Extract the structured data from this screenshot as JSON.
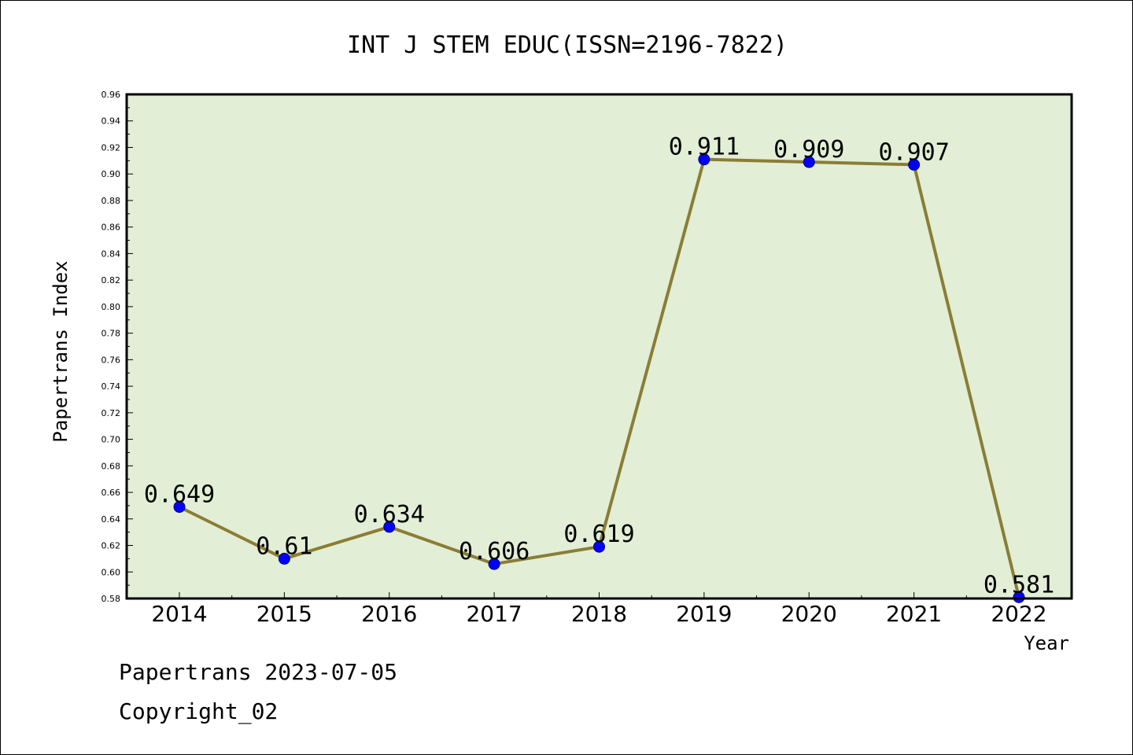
{
  "chart_data": {
    "type": "line",
    "title": "INT J STEM EDUC(ISSN=2196-7822)",
    "xlabel": "Year",
    "ylabel": "Papertrans Index",
    "ylim": [
      0.58,
      0.96
    ],
    "yticks": [
      "0.58",
      "0.60",
      "0.62",
      "0.64",
      "0.66",
      "0.68",
      "0.70",
      "0.72",
      "0.74",
      "0.76",
      "0.78",
      "0.80",
      "0.82",
      "0.84",
      "0.86",
      "0.88",
      "0.90",
      "0.92",
      "0.94",
      "0.96"
    ],
    "categories": [
      "2014",
      "2015",
      "2016",
      "2017",
      "2018",
      "2019",
      "2020",
      "2021",
      "2022"
    ],
    "series": [
      {
        "values": [
          0.649,
          0.61,
          0.634,
          0.606,
          0.619,
          0.911,
          0.909,
          0.907,
          0.581
        ],
        "labels": [
          "0.649",
          "0.61",
          "0.634",
          "0.606",
          "0.619",
          "0.911",
          "0.909",
          "0.907",
          "0.581"
        ],
        "line_color": "#8b7d35",
        "marker_color": "#0000ff"
      }
    ],
    "plot_background": "#e2efd6",
    "grid": false
  },
  "footer": {
    "line1": "Papertrans 2023-07-05",
    "line2": "Copyright_02"
  }
}
